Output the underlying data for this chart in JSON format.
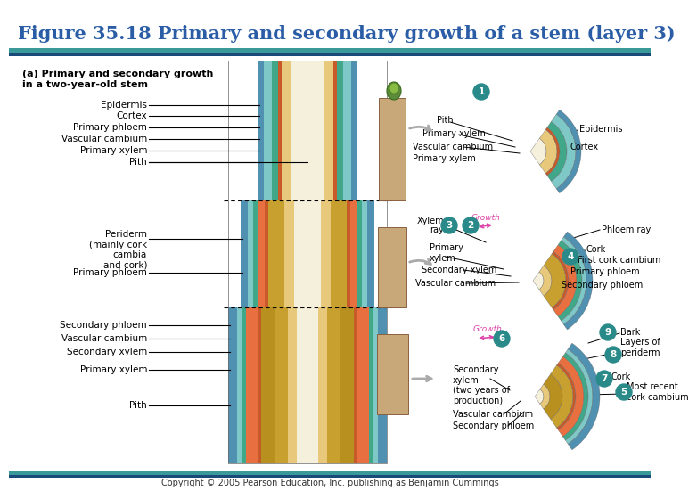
{
  "title": "Figure 35.18 Primary and secondary growth of a stem (layer 3)",
  "title_color": "#2B5DA6",
  "title_fontsize": 15,
  "bg_color": "#FFFFFF",
  "teal_bar": "#3A9A9A",
  "navy_bar": "#1A4A7A",
  "copyright": "Copyright © 2005 Pearson Education, Inc. publishing as Benjamin Cummings",
  "circle_color": "#2A8A8A",
  "pith": "#F5F0DC",
  "primary_xylem": "#E8C87A",
  "secondary_xylem": "#C8A030",
  "secondary_xylem2": "#B89020",
  "vascular_cambium": "#C85A2A",
  "secondary_phloem": "#E87040",
  "primary_phloem": "#40A888",
  "cortex": "#7EC8C8",
  "epidermis": "#5090B0",
  "periderm": "#5090B0",
  "cork": "#7EC8C8",
  "stem_brown": "#C8A878",
  "stem_dark": "#8B6040"
}
